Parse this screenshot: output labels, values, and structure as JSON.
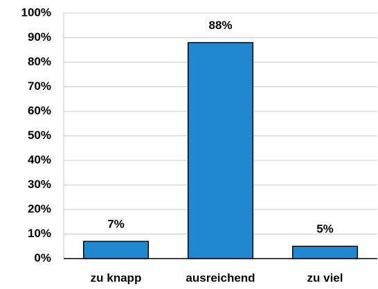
{
  "chart_data": {
    "type": "bar",
    "categories": [
      "zu knapp",
      "ausreichend",
      "zu viel"
    ],
    "values": [
      7,
      88,
      5
    ],
    "value_labels": [
      "7%",
      "88%",
      "5%"
    ],
    "color": "#1f88d0",
    "ylim": [
      0,
      100
    ],
    "yticks": [
      {
        "value": 0,
        "label": "0%"
      },
      {
        "value": 10,
        "label": "10%"
      },
      {
        "value": 20,
        "label": "20%"
      },
      {
        "value": 30,
        "label": "30%"
      },
      {
        "value": 40,
        "label": "40%"
      },
      {
        "value": 50,
        "label": "50%"
      },
      {
        "value": 60,
        "label": "60%"
      },
      {
        "value": 70,
        "label": "70%"
      },
      {
        "value": 80,
        "label": "80%"
      },
      {
        "value": 90,
        "label": "90%"
      },
      {
        "value": 100,
        "label": "100%"
      }
    ],
    "grid": true
  }
}
